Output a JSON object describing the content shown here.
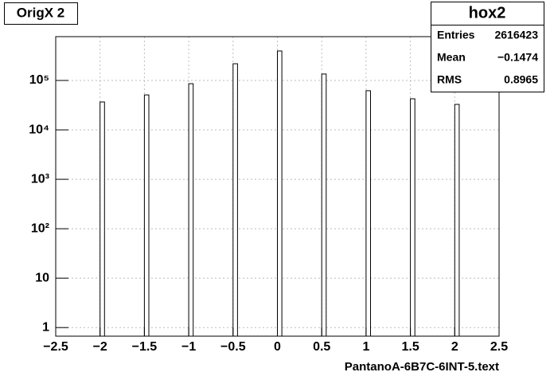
{
  "chart_data": {
    "type": "bar",
    "title": "OrigX 2",
    "x_label": "PantanoA-6B7C-6INT-5.text",
    "x": [
      -2,
      -1.5,
      -1,
      -0.5,
      0,
      0.5,
      1,
      1.5,
      2
    ],
    "values": [
      36700,
      51000,
      86000,
      218000,
      395000,
      135000,
      62000,
      42600,
      32800
    ],
    "color": "#ffffff",
    "xlim": [
      -2.5,
      2.5
    ],
    "xticks": [
      {
        "value": -2.5,
        "label": "−2.5"
      },
      {
        "value": -2,
        "label": "−2"
      },
      {
        "value": -1.5,
        "label": "−1.5"
      },
      {
        "value": -1,
        "label": "−1"
      },
      {
        "value": -0.5,
        "label": "−0.5"
      },
      0,
      0.5,
      1,
      1.5,
      2,
      2.5
    ],
    "ylim": [
      0.67,
      770000
    ],
    "yticks": [
      1,
      10,
      {
        "value": 100,
        "label": "10²"
      },
      {
        "value": 1000,
        "label": "10³"
      },
      {
        "value": 10000,
        "label": "10⁴"
      },
      {
        "value": 100000,
        "label": "10⁵"
      }
    ],
    "log_y": true,
    "grid": true,
    "stats": {
      "title": "hox2",
      "rows": [
        [
          "Entries",
          "2616423"
        ],
        [
          "Mean",
          "−0.1474"
        ],
        [
          "RMS",
          "0.8965"
        ]
      ]
    }
  }
}
